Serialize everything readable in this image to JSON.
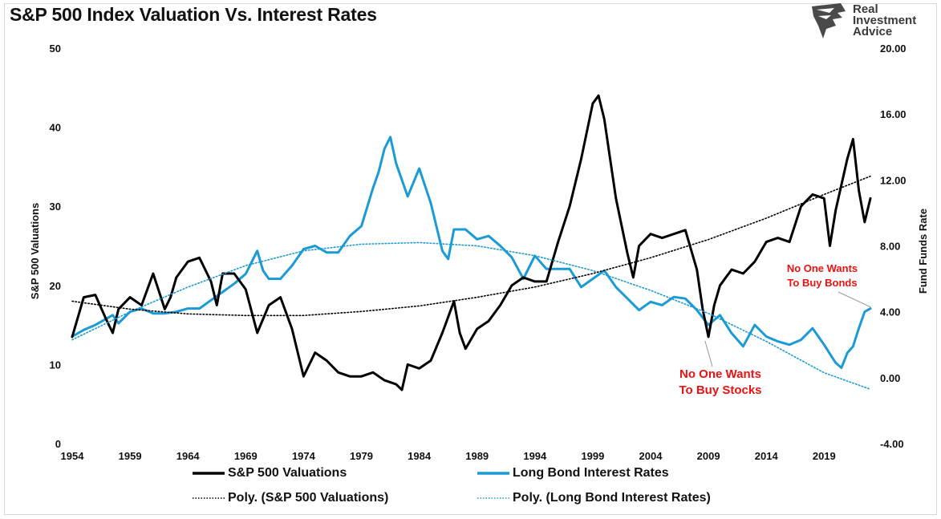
{
  "chart_data": {
    "type": "line",
    "title": "S&P 500 Index Valuation Vs. Interest Rates",
    "ylabel": "S&P 500 Valuations",
    "ylabel_right": "Fund Funds Rate",
    "xlim": [
      1954,
      2023
    ],
    "ylim": [
      0,
      50
    ],
    "ylim_right": [
      -4,
      20
    ],
    "x_ticks": [
      "1954",
      "1959",
      "1964",
      "1969",
      "1974",
      "1979",
      "1984",
      "1989",
      "1994",
      "1999",
      "2004",
      "2009",
      "2014",
      "2019"
    ],
    "y_ticks": [
      "0",
      "10",
      "20",
      "30",
      "40",
      "50"
    ],
    "y_ticks_right": [
      "-4.00",
      "0.00",
      "4.00",
      "8.00",
      "12.00",
      "16.00",
      "20.00"
    ],
    "grid": false,
    "legend_position": "bottom",
    "series": [
      {
        "name": "S&P 500 Valuations",
        "axis": "left",
        "color": "#000000",
        "style": "solid",
        "x": [
          1954.0,
          1955.0,
          1956.0,
          1957.0,
          1957.5,
          1958.0,
          1959.0,
          1960.0,
          1961.0,
          1962.0,
          1962.5,
          1963.0,
          1964.0,
          1965.0,
          1966.0,
          1966.5,
          1967.0,
          1968.0,
          1969.0,
          1970.0,
          1971.0,
          1972.0,
          1973.0,
          1974.0,
          1974.5,
          1975.0,
          1976.0,
          1977.0,
          1978.0,
          1979.0,
          1980.0,
          1981.0,
          1982.0,
          1982.5,
          1983.0,
          1984.0,
          1985.0,
          1986.0,
          1987.0,
          1987.5,
          1988.0,
          1989.0,
          1990.0,
          1991.0,
          1992.0,
          1993.0,
          1994.0,
          1995.0,
          1996.0,
          1997.0,
          1998.0,
          1999.0,
          1999.5,
          2000.0,
          2001.0,
          2002.0,
          2002.5,
          2003.0,
          2004.0,
          2005.0,
          2006.0,
          2007.0,
          2008.0,
          2008.5,
          2009.0,
          2009.5,
          2010.0,
          2011.0,
          2012.0,
          2013.0,
          2014.0,
          2015.0,
          2016.0,
          2017.0,
          2018.0,
          2019.0,
          2019.5,
          2020.0,
          2021.0,
          2021.5,
          2022.0,
          2022.5,
          2023.0
        ],
        "y": [
          13.5,
          18.5,
          18.8,
          15.5,
          14.0,
          17.0,
          18.5,
          17.5,
          21.5,
          17.0,
          18.5,
          21.0,
          23.0,
          23.5,
          20.5,
          17.5,
          21.5,
          21.5,
          19.5,
          14.0,
          17.5,
          18.5,
          14.5,
          8.5,
          10.0,
          11.5,
          10.5,
          9.0,
          8.5,
          8.5,
          9.0,
          8.0,
          7.5,
          6.8,
          10.0,
          9.5,
          10.5,
          14.0,
          18.0,
          14.0,
          12.0,
          14.5,
          15.5,
          17.5,
          20.0,
          21.0,
          20.5,
          20.5,
          25.5,
          30.0,
          36.0,
          43.0,
          44.0,
          41.0,
          31.0,
          24.0,
          21.0,
          25.0,
          26.5,
          26.0,
          26.5,
          27.0,
          22.0,
          17.0,
          13.5,
          17.5,
          20.0,
          22.0,
          21.5,
          23.0,
          25.5,
          26.0,
          25.5,
          30.0,
          31.5,
          31.0,
          25.0,
          29.5,
          36.0,
          38.5,
          32.0,
          28.0,
          31.0
        ]
      },
      {
        "name": "Long Bond Interest Rates",
        "axis": "right",
        "color": "#1a9ad6",
        "style": "solid",
        "x": [
          1954.0,
          1955.0,
          1956.0,
          1957.0,
          1957.5,
          1958.0,
          1959.0,
          1960.0,
          1961.0,
          1962.0,
          1963.0,
          1964.0,
          1965.0,
          1966.0,
          1967.0,
          1968.0,
          1969.0,
          1970.0,
          1970.5,
          1971.0,
          1972.0,
          1973.0,
          1974.0,
          1975.0,
          1976.0,
          1977.0,
          1978.0,
          1979.0,
          1980.0,
          1980.5,
          1981.0,
          1981.5,
          1982.0,
          1983.0,
          1984.0,
          1985.0,
          1986.0,
          1986.5,
          1987.0,
          1988.0,
          1989.0,
          1990.0,
          1991.0,
          1992.0,
          1993.0,
          1994.0,
          1995.0,
          1996.0,
          1997.0,
          1998.0,
          1999.0,
          2000.0,
          2001.0,
          2002.0,
          2003.0,
          2004.0,
          2005.0,
          2006.0,
          2007.0,
          2008.0,
          2009.0,
          2010.0,
          2011.0,
          2012.0,
          2013.0,
          2014.0,
          2015.0,
          2016.0,
          2017.0,
          2018.0,
          2019.0,
          2020.0,
          2020.5,
          2021.0,
          2021.5,
          2022.0,
          2022.5,
          2023.0
        ],
        "y": [
          2.5,
          2.9,
          3.2,
          3.6,
          3.8,
          3.3,
          4.0,
          4.2,
          3.9,
          3.9,
          4.0,
          4.2,
          4.2,
          4.7,
          5.2,
          5.7,
          6.3,
          7.7,
          6.5,
          6.0,
          6.0,
          6.8,
          7.8,
          8.0,
          7.6,
          7.6,
          8.6,
          9.2,
          11.5,
          12.5,
          13.9,
          14.6,
          13.0,
          11.0,
          12.7,
          10.6,
          7.7,
          7.2,
          9.0,
          9.0,
          8.4,
          8.6,
          8.0,
          7.3,
          6.0,
          7.4,
          6.6,
          6.6,
          6.6,
          5.5,
          6.0,
          6.5,
          5.5,
          4.8,
          4.1,
          4.6,
          4.4,
          4.9,
          4.8,
          4.1,
          3.2,
          3.8,
          2.7,
          1.9,
          3.2,
          2.5,
          2.2,
          2.0,
          2.3,
          3.0,
          2.0,
          0.9,
          0.6,
          1.5,
          1.9,
          3.0,
          4.0,
          4.2
        ]
      },
      {
        "name": "Poly. (S&P 500 Valuations)",
        "axis": "left",
        "color": "#000000",
        "style": "dotted",
        "x": [
          1954,
          1959,
          1964,
          1969,
          1974,
          1979,
          1984,
          1989,
          1994,
          1999,
          2004,
          2009,
          2014,
          2019,
          2023
        ],
        "y": [
          18.0,
          17.0,
          16.4,
          16.2,
          16.2,
          16.7,
          17.4,
          18.5,
          19.8,
          21.5,
          23.5,
          25.8,
          28.5,
          31.5,
          33.8
        ]
      },
      {
        "name": "Poly. (Long Bond Interest Rates)",
        "axis": "right",
        "color": "#1a9ad6",
        "style": "dotted",
        "x": [
          1954,
          1959,
          1964,
          1969,
          1974,
          1979,
          1984,
          1989,
          1994,
          1999,
          2004,
          2009,
          2014,
          2019,
          2023
        ],
        "y": [
          2.3,
          4.0,
          5.5,
          6.8,
          7.7,
          8.1,
          8.2,
          8.0,
          7.4,
          6.5,
          5.3,
          3.9,
          2.2,
          0.3,
          -0.7
        ]
      }
    ],
    "annotations": [
      {
        "text": [
          "No One Wants",
          "To Buy Stocks"
        ],
        "point": {
          "x": 2008.7,
          "y": 13.0,
          "axis": "left"
        }
      },
      {
        "text": [
          "No One Wants",
          "To Buy Bonds"
        ],
        "point": {
          "x": 2023.0,
          "y": 4.1,
          "axis": "right"
        }
      }
    ]
  },
  "brand": {
    "line1": "Real",
    "line2": "Investment",
    "line3": "Advice"
  }
}
